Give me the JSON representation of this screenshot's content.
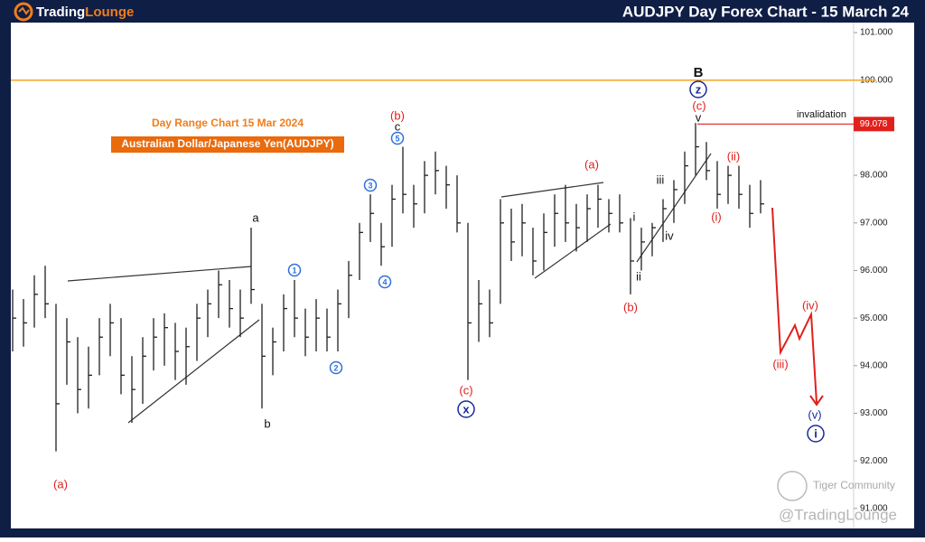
{
  "chart_data": {
    "type": "ohlc",
    "logo": {
      "first": "Trading",
      "second": "Lounge"
    },
    "title": "AUDJPY Day Forex Chart - 15 March 24",
    "subtitle": "Day Range Chart 15 Mar 2024",
    "pair_label": "Australian Dollar/Japanese Yen(AUDJPY)",
    "color": "#1f1f1f",
    "bars": {
      "high": [
        95.6,
        95.4,
        95.9,
        96.1,
        95.3,
        95.0,
        94.6,
        94.4,
        95.0,
        95.3,
        95.0,
        94.2,
        94.6,
        95.0,
        95.1,
        94.9,
        94.8,
        95.3,
        95.6,
        96.0,
        95.8,
        95.6,
        96.9,
        95.3,
        94.8,
        95.5,
        95.8,
        95.2,
        95.4,
        95.2,
        95.6,
        96.2,
        97.0,
        97.6,
        97.0,
        97.8,
        98.6,
        97.8,
        98.3,
        98.5,
        98.2,
        98.0,
        97.0,
        95.8,
        95.6,
        97.5,
        97.3,
        97.4,
        96.9,
        97.2,
        97.6,
        97.8,
        97.4,
        97.6,
        97.8,
        97.5,
        97.6,
        97.1,
        96.9,
        97.0,
        97.5,
        97.9,
        98.5,
        99.1,
        98.7,
        98.3,
        98.2,
        98.2,
        97.8,
        97.9
      ],
      "low": [
        94.3,
        94.4,
        94.8,
        95.0,
        92.2,
        93.6,
        93.0,
        93.1,
        93.8,
        94.2,
        93.4,
        92.8,
        93.2,
        93.9,
        94.0,
        93.7,
        93.6,
        94.1,
        94.6,
        95.0,
        94.8,
        94.6,
        95.3,
        93.1,
        93.8,
        94.3,
        94.6,
        94.2,
        94.3,
        94.3,
        94.3,
        95.0,
        95.8,
        96.6,
        96.1,
        96.5,
        97.2,
        96.9,
        97.2,
        97.6,
        97.3,
        96.8,
        93.7,
        94.5,
        94.6,
        95.3,
        96.2,
        96.3,
        95.9,
        96.0,
        96.5,
        96.6,
        96.4,
        96.6,
        96.9,
        96.8,
        96.8,
        95.5,
        96.0,
        96.3,
        96.6,
        97.0,
        97.4,
        98.0,
        97.9,
        97.3,
        97.4,
        97.3,
        96.9,
        97.2
      ],
      "close": [
        95.0,
        94.9,
        95.5,
        95.3,
        93.2,
        94.5,
        93.5,
        93.8,
        94.6,
        94.9,
        93.8,
        93.5,
        94.2,
        94.6,
        94.8,
        94.3,
        94.4,
        95.0,
        95.3,
        95.7,
        95.2,
        95.0,
        95.6,
        94.2,
        94.5,
        95.2,
        95.0,
        94.6,
        95.0,
        94.6,
        95.3,
        95.9,
        96.8,
        97.2,
        96.5,
        97.5,
        97.6,
        97.4,
        98.0,
        98.1,
        97.8,
        97.0,
        94.9,
        95.3,
        94.9,
        97.0,
        96.6,
        97.0,
        96.2,
        96.8,
        97.2,
        97.0,
        96.9,
        97.3,
        97.5,
        97.2,
        97.0,
        96.2,
        96.6,
        96.9,
        97.3,
        97.7,
        98.2,
        98.6,
        98.1,
        97.6,
        98.0,
        97.6,
        97.2,
        97.4
      ]
    },
    "ylim": [
      90.58,
      101.21
    ],
    "yticks": [
      {
        "value": 91,
        "label": "91.000"
      },
      {
        "value": 92,
        "label": "92.000"
      },
      {
        "value": 93,
        "label": "93.000"
      },
      {
        "value": 94,
        "label": "94.000"
      },
      {
        "value": 95,
        "label": "95.000"
      },
      {
        "value": 96,
        "label": "96.000"
      },
      {
        "value": 97,
        "label": "97.000"
      },
      {
        "value": 98,
        "label": "98.000"
      },
      {
        "value": 99,
        "label": "99.000"
      },
      {
        "value": 100,
        "label": "100.000"
      },
      {
        "value": 101,
        "label": "101.000"
      }
    ],
    "level_line": 100,
    "invalidation": {
      "text": "invalidation",
      "value": 99.078
    },
    "wave_labels": [
      {
        "text": "(a)",
        "color": "#e0201c"
      },
      {
        "text": "a",
        "color": "#111"
      },
      {
        "text": "b",
        "color": "#111"
      },
      {
        "text": "(b)",
        "color": "#e0201c"
      },
      {
        "text": "c",
        "color": "#111"
      },
      {
        "text": "1",
        "color": "#2f6fe0",
        "circled": true
      },
      {
        "text": "2",
        "color": "#2f6fe0",
        "circled": true
      },
      {
        "text": "3",
        "color": "#2f6fe0",
        "circled": true
      },
      {
        "text": "4",
        "color": "#2f6fe0",
        "circled": true
      },
      {
        "text": "5",
        "color": "#2f6fe0",
        "circled": true
      },
      {
        "text": "(c)",
        "color": "#e0201c"
      },
      {
        "text": "x",
        "color": "#1a2a9a",
        "circled": true
      },
      {
        "text": "(a)",
        "color": "#e0201c"
      },
      {
        "text": "(b)",
        "color": "#e0201c"
      },
      {
        "text": "i",
        "color": "#111"
      },
      {
        "text": "ii",
        "color": "#111"
      },
      {
        "text": "iii",
        "color": "#111"
      },
      {
        "text": "iv",
        "color": "#111"
      },
      {
        "text": "v",
        "color": "#111"
      },
      {
        "text": "(c)",
        "color": "#e0201c"
      },
      {
        "text": "z",
        "color": "#1a2a9a",
        "circled": true
      },
      {
        "text": "B",
        "color": "#111"
      },
      {
        "text": "(i)",
        "color": "#e0201c"
      },
      {
        "text": "(ii)",
        "color": "#e0201c"
      },
      {
        "text": "(iii)",
        "color": "#e0201c"
      },
      {
        "text": "(iv)",
        "color": "#e0201c"
      },
      {
        "text": "(v)",
        "color": "#1a2a9a"
      },
      {
        "text": "i",
        "color": "#1a2a9a",
        "circled": true
      }
    ],
    "watermark": {
      "community": "Tiger Community",
      "handle": "@TradingLounge"
    }
  }
}
